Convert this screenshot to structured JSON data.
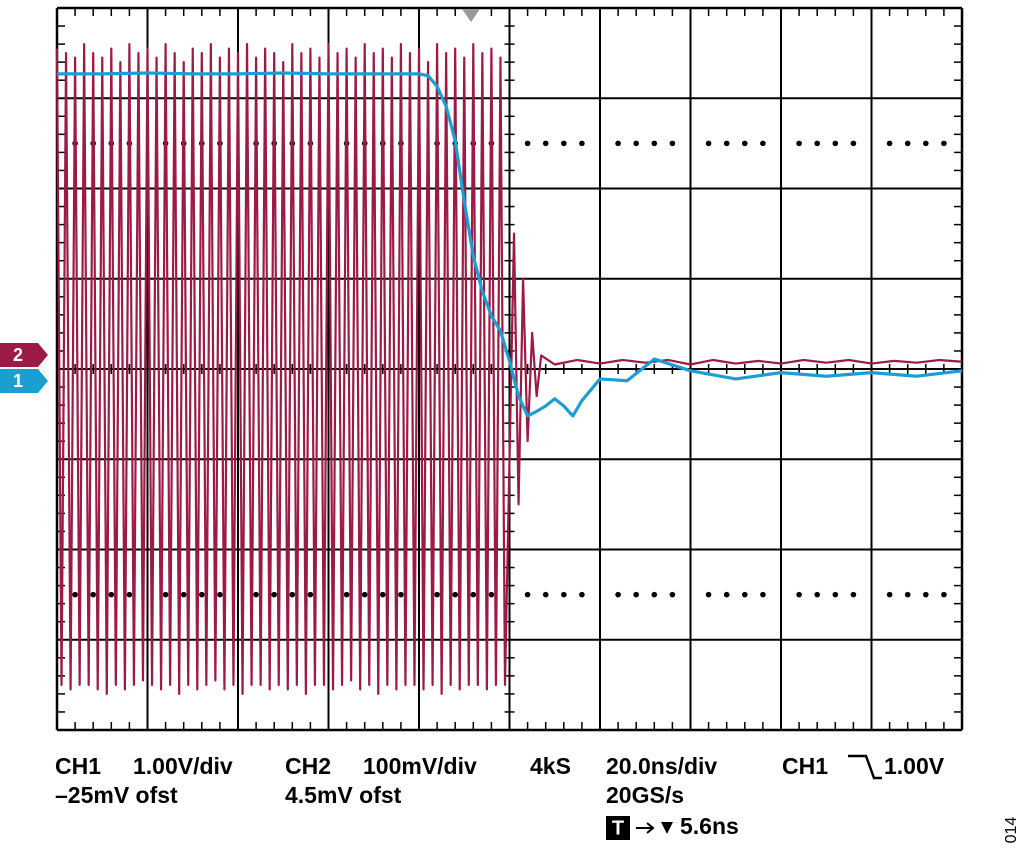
{
  "chart_data": {
    "type": "line",
    "xlim": [
      0,
      10
    ],
    "ylim": [
      -4,
      4
    ],
    "series": [
      {
        "name": "2",
        "color": "#9b1b46",
        "x": [
          0,
          0.05,
          0.1,
          0.15,
          0.2,
          0.25,
          0.3,
          0.35,
          0.4,
          0.45,
          0.5,
          0.55,
          0.6,
          0.65,
          0.7,
          0.75,
          0.8,
          0.85,
          0.9,
          0.95,
          1,
          1.05,
          1.1,
          1.15,
          1.2,
          1.25,
          1.3,
          1.35,
          1.4,
          1.45,
          1.5,
          1.55,
          1.6,
          1.65,
          1.7,
          1.75,
          1.8,
          1.85,
          1.9,
          1.95,
          2,
          2.05,
          2.1,
          2.15,
          2.2,
          2.25,
          2.3,
          2.35,
          2.4,
          2.45,
          2.5,
          2.55,
          2.6,
          2.65,
          2.7,
          2.75,
          2.8,
          2.85,
          2.9,
          2.95,
          3,
          3.05,
          3.1,
          3.15,
          3.2,
          3.25,
          3.3,
          3.35,
          3.4,
          3.45,
          3.5,
          3.55,
          3.6,
          3.65,
          3.7,
          3.75,
          3.8,
          3.85,
          3.9,
          3.95,
          4,
          4.05,
          4.1,
          4.15,
          4.2,
          4.25,
          4.3,
          4.35,
          4.4,
          4.45,
          4.5,
          4.55,
          4.6,
          4.65,
          4.7,
          4.75,
          4.8,
          4.85,
          4.9,
          4.95,
          5.05,
          5.1,
          5.15,
          5.2,
          5.25,
          5.3,
          5.35,
          5.5,
          5.75,
          6,
          6.25,
          6.5,
          6.75,
          7,
          7.25,
          7.5,
          7.75,
          8,
          8.25,
          8.5,
          8.75,
          9,
          9.25,
          9.5,
          9.75,
          10
        ],
        "values": [
          3.55,
          -3.5,
          3.5,
          -3.55,
          3.45,
          -3.5,
          3.6,
          -3.5,
          3.5,
          -3.55,
          3.45,
          -3.6,
          3.55,
          -3.5,
          3.4,
          -3.55,
          3.6,
          -3.5,
          3.5,
          -3.45,
          3.55,
          -3.5,
          3.45,
          -3.55,
          3.6,
          -3.5,
          3.5,
          -3.6,
          3.4,
          -3.5,
          3.55,
          -3.55,
          3.5,
          -3.5,
          3.6,
          -3.45,
          3.45,
          -3.55,
          3.55,
          -3.5,
          3.5,
          -3.6,
          3.6,
          -3.5,
          3.45,
          -3.5,
          3.55,
          -3.55,
          3.5,
          -3.5,
          3.4,
          -3.55,
          3.6,
          -3.5,
          3.5,
          -3.6,
          3.55,
          -3.5,
          3.45,
          -3.5,
          3.6,
          -3.55,
          3.5,
          -3.5,
          3.55,
          -3.45,
          3.45,
          -3.55,
          3.6,
          -3.5,
          3.5,
          -3.6,
          3.55,
          -3.5,
          3.45,
          -3.55,
          3.6,
          -3.5,
          3.5,
          -3.5,
          3.55,
          -3.55,
          3.4,
          -3.5,
          3.6,
          -3.6,
          3.5,
          -3.5,
          3.55,
          -3.55,
          3.45,
          -3.5,
          3.6,
          -3.5,
          3.5,
          -3.55,
          3.55,
          -3.5,
          3.45,
          -3.5,
          1.5,
          -1.5,
          1.0,
          -0.8,
          0.4,
          -0.3,
          0.15,
          0.05,
          0.1,
          0.06,
          0.1,
          0.07,
          0.1,
          0.05,
          0.1,
          0.06,
          0.09,
          0.06,
          0.1,
          0.07,
          0.1,
          0.06,
          0.09,
          0.07,
          0.1,
          0.08
        ]
      },
      {
        "name": "1",
        "color": "#1a9fd0",
        "x": [
          0,
          0.5,
          1,
          1.5,
          2,
          2.5,
          3,
          3.5,
          4,
          4.1,
          4.2,
          4.3,
          4.4,
          4.5,
          4.6,
          4.7,
          4.8,
          4.9,
          5,
          5.1,
          5.2,
          5.3,
          5.4,
          5.5,
          5.6,
          5.7,
          5.8,
          6,
          6.3,
          6.6,
          7,
          7.5,
          8,
          8.5,
          9,
          9.5,
          10
        ],
        "values": [
          3.27,
          3.27,
          3.28,
          3.27,
          3.27,
          3.28,
          3.27,
          3.27,
          3.27,
          3.25,
          3.13,
          2.91,
          2.53,
          1.86,
          1.25,
          0.86,
          0.59,
          0.42,
          0.09,
          -0.3,
          -0.52,
          -0.47,
          -0.41,
          -0.33,
          -0.41,
          -0.52,
          -0.35,
          -0.11,
          -0.13,
          0.11,
          -0.02,
          -0.11,
          -0.04,
          -0.08,
          -0.04,
          -0.08,
          -0.02
        ]
      }
    ]
  },
  "readout": {
    "ch1": "CH1",
    "ch1_scale": "1.00V/div",
    "ch1_offset": "–25mV ofst",
    "ch2": "CH2",
    "ch2_scale": "100mV/div",
    "ch2_offset": "4.5mV ofst",
    "record": "4kS",
    "timebase": "20.0ns/div",
    "sample_rate": "20GS/s",
    "trigger_source": "CH1",
    "trigger_level": "1.00V",
    "trigger_box": "T",
    "trigger_delay": "5.6ns"
  },
  "figure_id": "014"
}
